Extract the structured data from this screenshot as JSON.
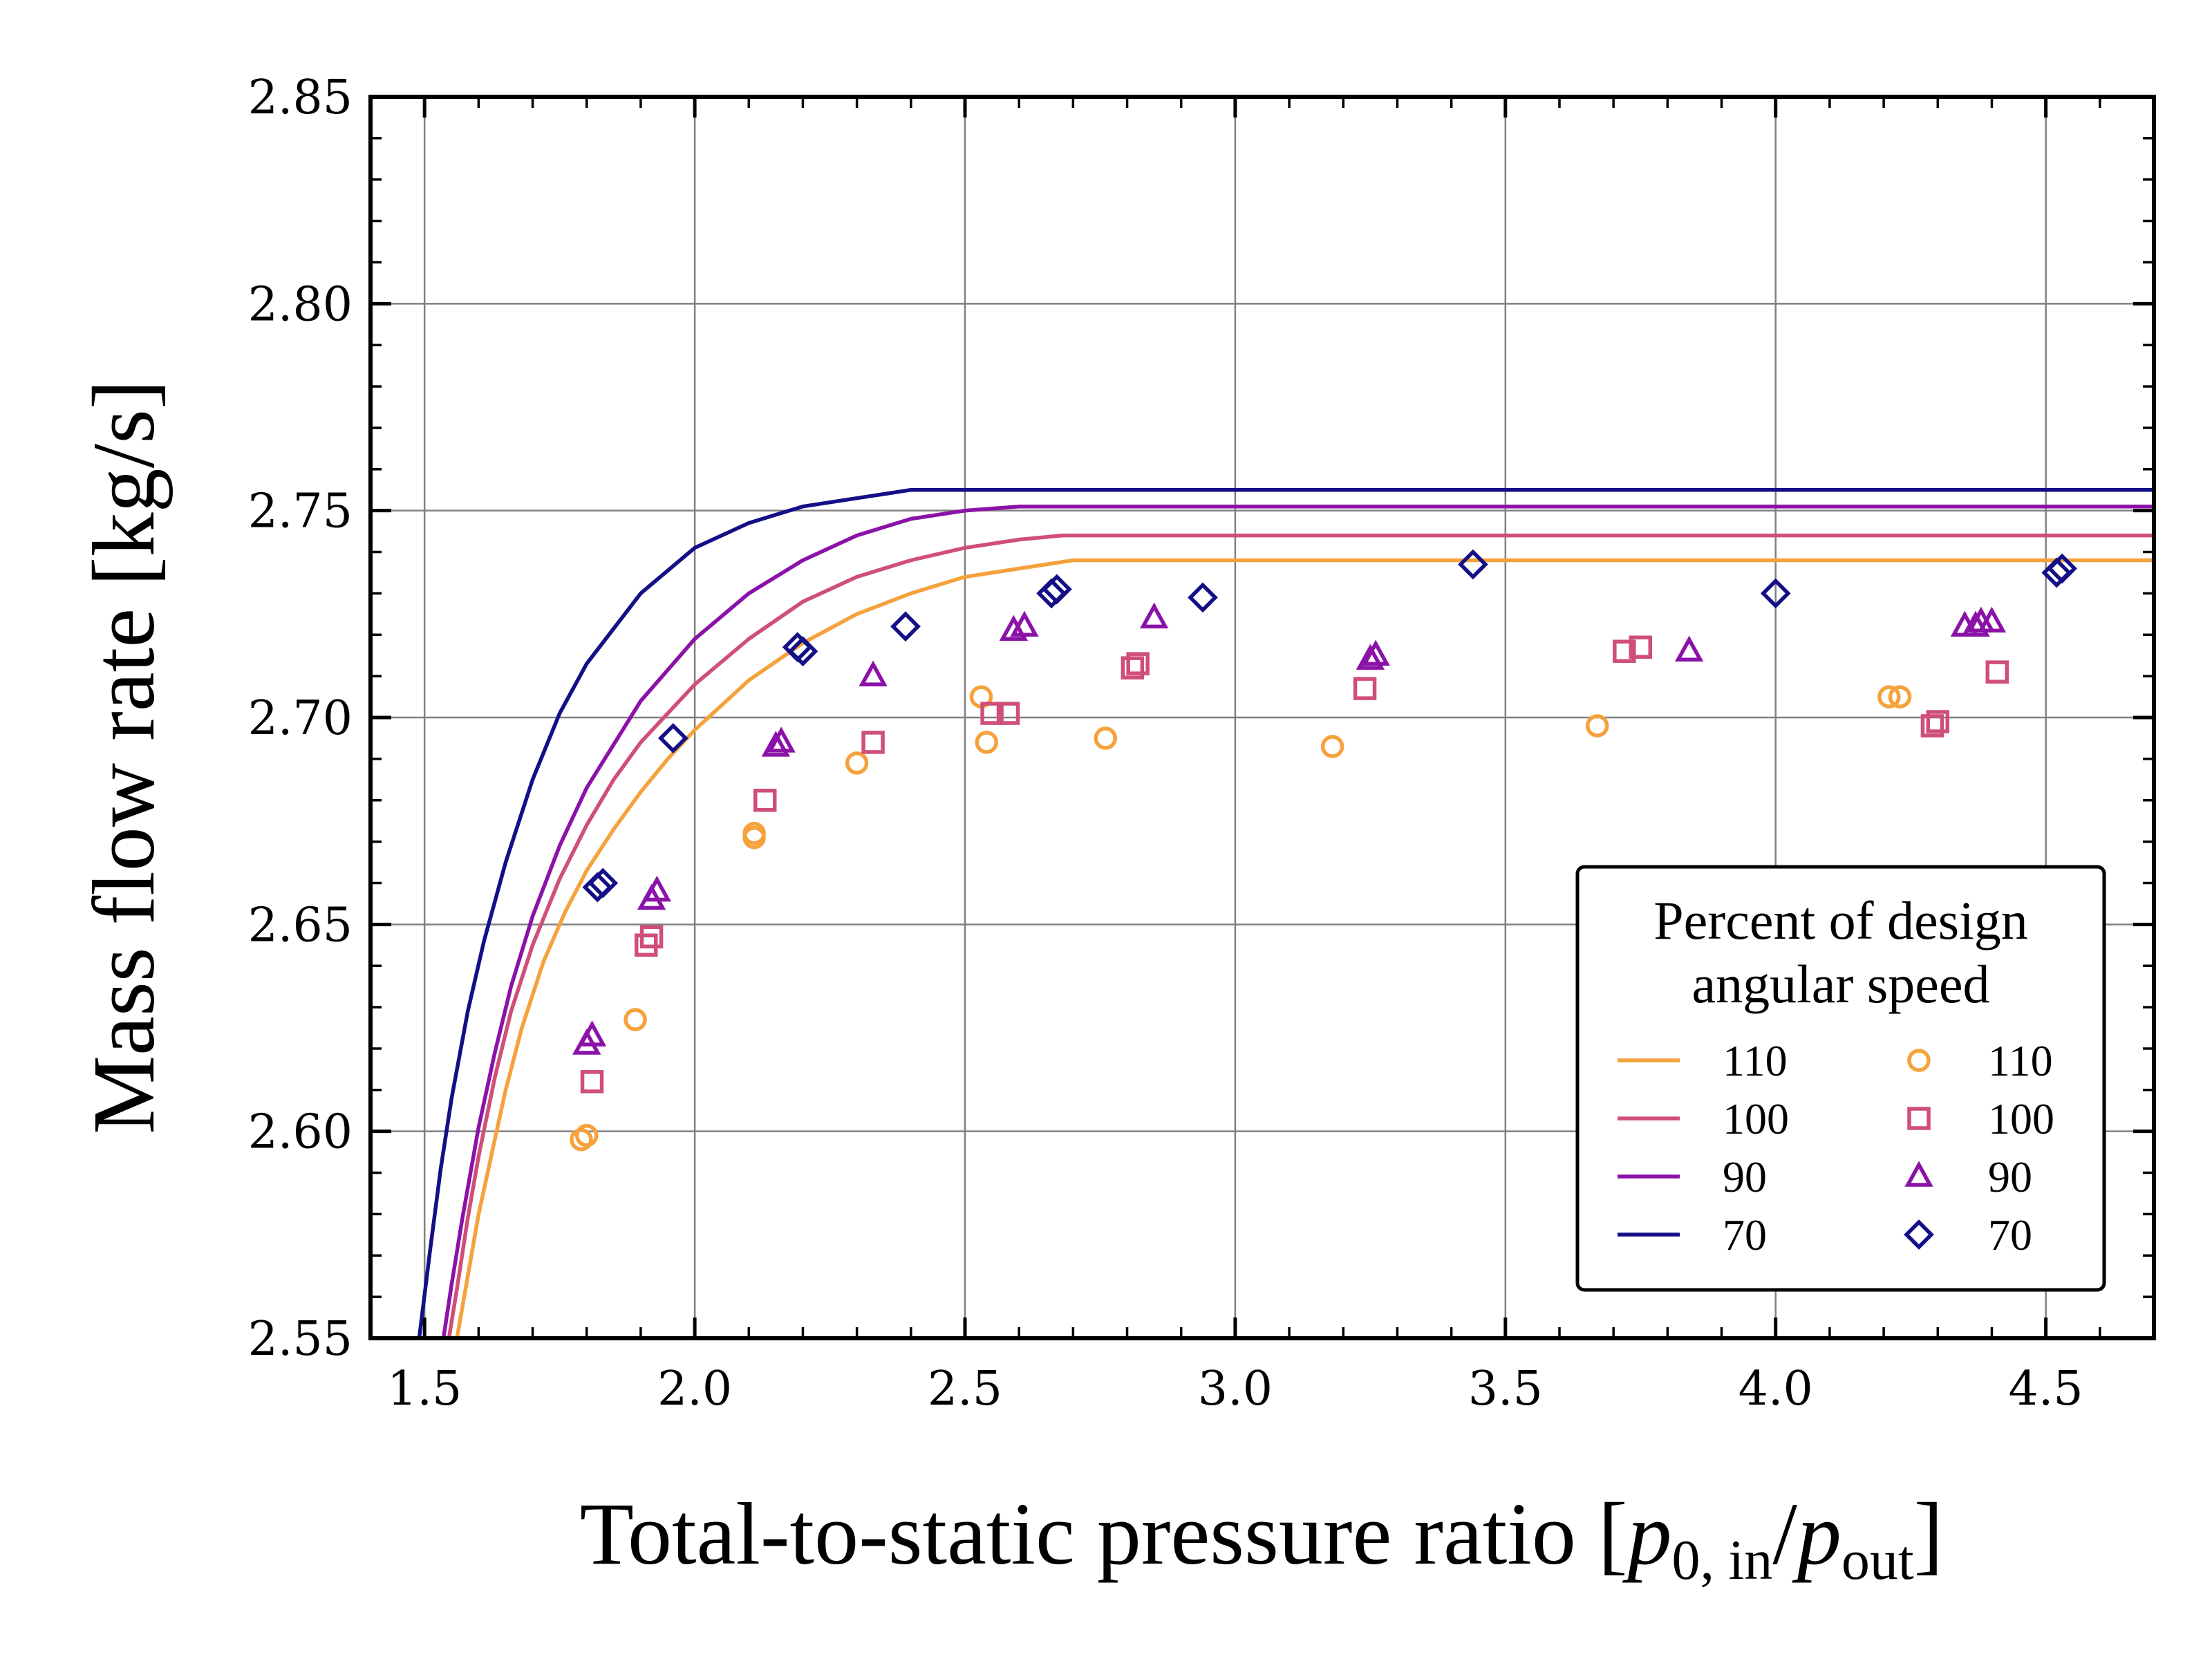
{
  "chart_data": {
    "type": "scatter",
    "xlabel": "Total-to-static pressure ratio [p0, in/pout]",
    "xlabel_parts": {
      "prefix": "Total-to-static pressure ratio [",
      "var1": "p",
      "sub1": "0, in",
      "slash": "/",
      "var2": "p",
      "sub2": "out",
      "suffix": "]"
    },
    "ylabel": "Mass flow rate [kg/s]",
    "xlim": [
      1.4,
      4.7
    ],
    "ylim": [
      2.55,
      2.85
    ],
    "xticks": [
      1.5,
      2.0,
      2.5,
      3.0,
      3.5,
      4.0,
      4.5
    ],
    "xtick_labels": [
      "1.5",
      "2.0",
      "2.5",
      "3.0",
      "3.5",
      "4.0",
      "4.5"
    ],
    "yticks": [
      2.55,
      2.6,
      2.65,
      2.7,
      2.75,
      2.8,
      2.85
    ],
    "ytick_labels": [
      "2.55",
      "2.60",
      "2.65",
      "2.70",
      "2.75",
      "2.80",
      "2.85"
    ],
    "grid": true,
    "legend": {
      "title_line1": "Percent of design",
      "title_line2": "angular speed",
      "placement": "lower-right",
      "line_labels": [
        "110",
        "100",
        "90",
        "70"
      ],
      "marker_labels": [
        "110",
        "100",
        "90",
        "70"
      ]
    },
    "colors": {
      "110": "#f5a23c",
      "100": "#cf4f79",
      "90": "#8b12a8",
      "70": "#130f86"
    },
    "lines": [
      {
        "name": "110",
        "color": "#f5a23c",
        "x": [
          1.56,
          1.58,
          1.6,
          1.63,
          1.65,
          1.68,
          1.72,
          1.76,
          1.8,
          1.85,
          1.9,
          1.95,
          2.0,
          2.1,
          2.2,
          2.3,
          2.4,
          2.5,
          2.6,
          2.7,
          3.0,
          3.5,
          4.0,
          4.5,
          4.7
        ],
        "y": [
          2.55,
          2.565,
          2.58,
          2.598,
          2.61,
          2.625,
          2.641,
          2.653,
          2.663,
          2.673,
          2.682,
          2.69,
          2.697,
          2.709,
          2.718,
          2.725,
          2.73,
          2.734,
          2.736,
          2.738,
          2.738,
          2.738,
          2.738,
          2.738,
          2.738
        ]
      },
      {
        "name": "100",
        "color": "#cf4f79",
        "x": [
          1.545,
          1.56,
          1.58,
          1.6,
          1.63,
          1.66,
          1.7,
          1.75,
          1.8,
          1.85,
          1.9,
          2.0,
          2.1,
          2.2,
          2.3,
          2.4,
          2.5,
          2.6,
          2.68,
          3.0,
          3.5,
          4.0,
          4.5,
          4.7
        ],
        "y": [
          2.55,
          2.562,
          2.579,
          2.594,
          2.613,
          2.629,
          2.645,
          2.661,
          2.674,
          2.685,
          2.694,
          2.708,
          2.719,
          2.728,
          2.734,
          2.738,
          2.741,
          2.743,
          2.744,
          2.744,
          2.744,
          2.744,
          2.744,
          2.744
        ]
      },
      {
        "name": "90",
        "color": "#8b12a8",
        "x": [
          1.535,
          1.55,
          1.57,
          1.6,
          1.63,
          1.66,
          1.7,
          1.75,
          1.8,
          1.9,
          2.0,
          2.1,
          2.2,
          2.3,
          2.4,
          2.5,
          2.6,
          2.65,
          3.0,
          3.5,
          4.0,
          4.5,
          4.7
        ],
        "y": [
          2.55,
          2.563,
          2.579,
          2.601,
          2.619,
          2.635,
          2.652,
          2.669,
          2.683,
          2.704,
          2.719,
          2.73,
          2.738,
          2.744,
          2.748,
          2.75,
          2.751,
          2.751,
          2.751,
          2.751,
          2.751,
          2.751,
          2.751
        ]
      },
      {
        "name": "70",
        "color": "#130f86",
        "x": [
          1.49,
          1.51,
          1.53,
          1.55,
          1.58,
          1.61,
          1.65,
          1.7,
          1.75,
          1.8,
          1.9,
          2.0,
          2.1,
          2.2,
          2.3,
          2.4,
          2.5,
          3.0,
          3.5,
          4.0,
          4.5,
          4.7
        ],
        "y": [
          2.55,
          2.571,
          2.591,
          2.608,
          2.629,
          2.646,
          2.665,
          2.685,
          2.701,
          2.713,
          2.73,
          2.741,
          2.747,
          2.751,
          2.753,
          2.755,
          2.755,
          2.755,
          2.755,
          2.755,
          2.755,
          2.755
        ]
      }
    ],
    "series": [
      {
        "name": "110",
        "marker": "circle",
        "color": "#f5a23c",
        "points": [
          [
            1.79,
            2.598
          ],
          [
            1.8,
            2.599
          ],
          [
            1.89,
            2.627
          ],
          [
            2.11,
            2.672
          ],
          [
            2.11,
            2.671
          ],
          [
            2.3,
            2.689
          ],
          [
            2.53,
            2.705
          ],
          [
            2.54,
            2.694
          ],
          [
            2.76,
            2.695
          ],
          [
            3.18,
            2.693
          ],
          [
            3.67,
            2.698
          ],
          [
            4.21,
            2.705
          ],
          [
            4.23,
            2.705
          ]
        ]
      },
      {
        "name": "100",
        "marker": "square",
        "color": "#cf4f79",
        "points": [
          [
            1.81,
            2.612
          ],
          [
            1.91,
            2.645
          ],
          [
            1.92,
            2.647
          ],
          [
            2.13,
            2.68
          ],
          [
            2.33,
            2.694
          ],
          [
            2.55,
            2.701
          ],
          [
            2.58,
            2.701
          ],
          [
            2.81,
            2.712
          ],
          [
            2.82,
            2.713
          ],
          [
            3.24,
            2.707
          ],
          [
            3.72,
            2.716
          ],
          [
            3.75,
            2.717
          ],
          [
            4.29,
            2.698
          ],
          [
            4.3,
            2.699
          ],
          [
            4.41,
            2.711
          ]
        ]
      },
      {
        "name": "90",
        "marker": "triangle",
        "color": "#8b12a8",
        "points": [
          [
            1.8,
            2.621
          ],
          [
            1.81,
            2.623
          ],
          [
            1.92,
            2.656
          ],
          [
            1.93,
            2.658
          ],
          [
            2.15,
            2.693
          ],
          [
            2.16,
            2.694
          ],
          [
            2.33,
            2.71
          ],
          [
            2.59,
            2.721
          ],
          [
            2.61,
            2.722
          ],
          [
            2.85,
            2.724
          ],
          [
            3.25,
            2.714
          ],
          [
            3.26,
            2.715
          ],
          [
            3.84,
            2.716
          ],
          [
            4.35,
            2.722
          ],
          [
            4.37,
            2.722
          ],
          [
            4.38,
            2.723
          ],
          [
            4.4,
            2.723
          ]
        ]
      },
      {
        "name": "70",
        "marker": "diamond",
        "color": "#130f86",
        "points": [
          [
            1.82,
            2.659
          ],
          [
            1.83,
            2.66
          ],
          [
            1.96,
            2.695
          ],
          [
            2.19,
            2.717
          ],
          [
            2.2,
            2.716
          ],
          [
            2.39,
            2.722
          ],
          [
            2.66,
            2.73
          ],
          [
            2.67,
            2.731
          ],
          [
            2.94,
            2.729
          ],
          [
            3.44,
            2.737
          ],
          [
            4.0,
            2.73
          ],
          [
            4.52,
            2.735
          ],
          [
            4.53,
            2.736
          ]
        ]
      }
    ]
  }
}
